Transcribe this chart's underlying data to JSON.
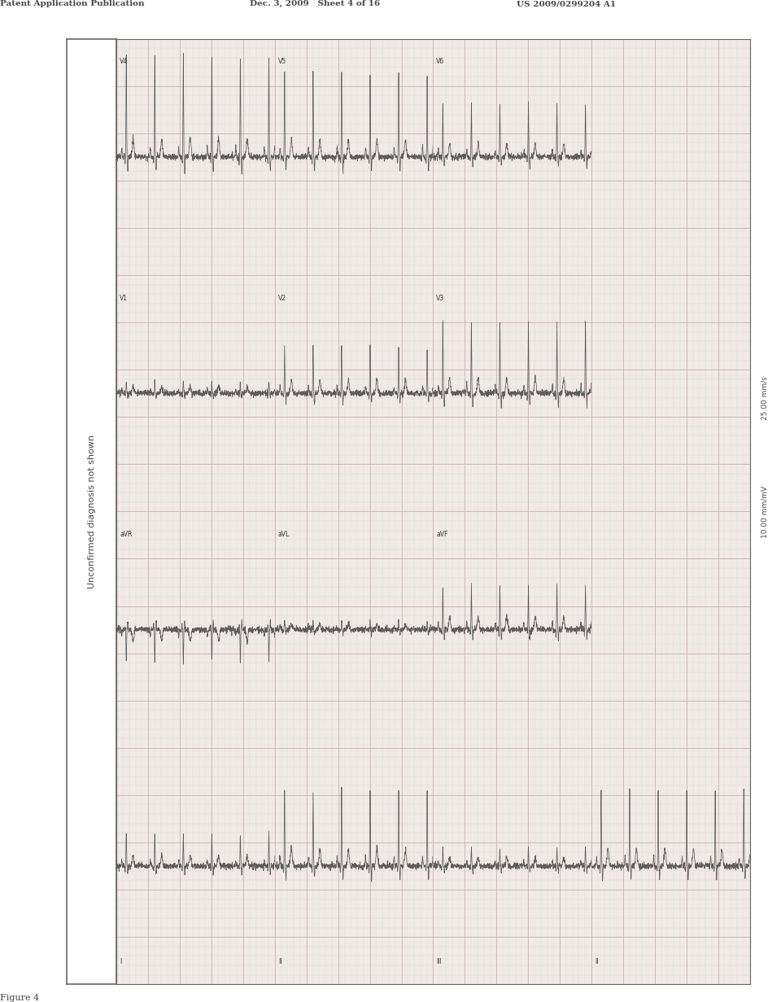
{
  "background_color": "#ffffff",
  "header_left": "Patent Application Publication",
  "header_mid": "Dec. 3, 2009   Sheet 4 of 16",
  "header_right": "US 2009/0299204 A1",
  "figure_label": "Figure 4",
  "side_text": "Unconfirmed diagnosis not shown",
  "ecg_label_speed": "25.00 mm/s",
  "ecg_label_gain": "10.00 mm/mV",
  "grid_major_color": "#c8b0b0",
  "grid_minor_color": "#ddd0d0",
  "ecg_paper_color": "#f0ebe8",
  "ecg_color": "#555555",
  "box_border_color": "#666666",
  "text_color": "#444444",
  "page_width": 10.24,
  "page_height": 13.2,
  "header_fontsize": 7.5,
  "figure_label_fontsize": 8,
  "side_text_fontsize": 8,
  "lead_label_fontsize": 5.5,
  "speed_gain_fontsize": 6.5
}
